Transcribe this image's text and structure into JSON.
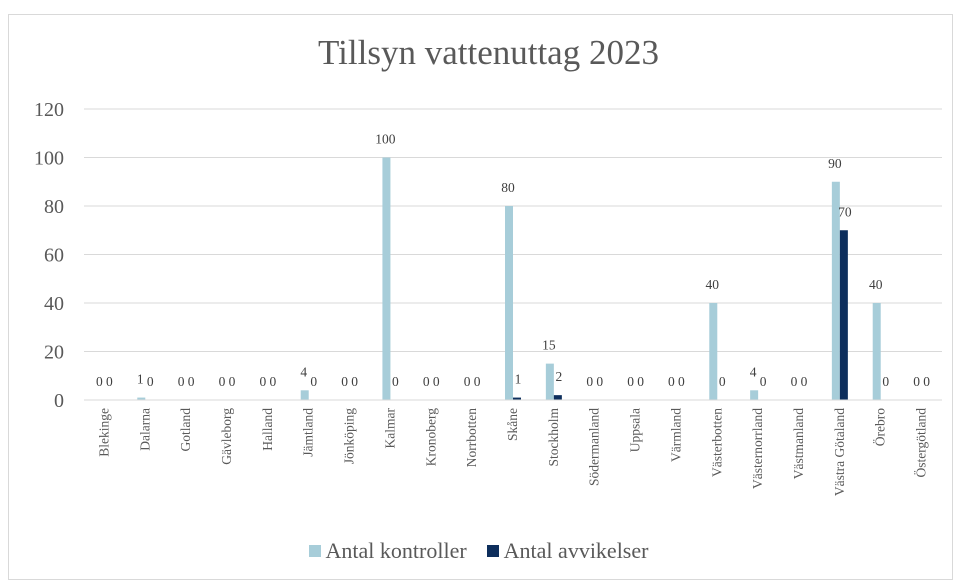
{
  "chart_data": {
    "type": "bar",
    "title": "Tillsyn vattenuttag 2023",
    "xlabel": "",
    "ylabel": "",
    "ylim": [
      0,
      120
    ],
    "yticks": [
      "0",
      "20",
      "40",
      "60",
      "80",
      "100",
      "120"
    ],
    "grid": true,
    "legend_position": "bottom",
    "categories": [
      "Blekinge",
      "Dalarna",
      "Gotland",
      "Gävleborg",
      "Halland",
      "Jämtland",
      "Jönköping",
      "Kalmar",
      "Kronoberg",
      "Norrbotten",
      "Skåne",
      "Stockholm",
      "Södermanland",
      "Uppsala",
      "Värmland",
      "Västerbotten",
      "Västernorrland",
      "Västmanland",
      "Västra Götaland",
      "Örebro",
      "Östergötland"
    ],
    "series": [
      {
        "name": "Antal kontroller",
        "color": "#a7cdd9",
        "values": [
          0,
          1,
          0,
          0,
          0,
          4,
          0,
          100,
          0,
          0,
          80,
          15,
          0,
          0,
          0,
          40,
          4,
          0,
          90,
          40,
          0
        ]
      },
      {
        "name": "Antal avvikelser",
        "color": "#0d2e5c",
        "values": [
          0,
          0,
          0,
          0,
          0,
          0,
          0,
          0,
          0,
          0,
          1,
          2,
          0,
          0,
          0,
          0,
          0,
          0,
          70,
          0,
          0
        ]
      }
    ]
  }
}
